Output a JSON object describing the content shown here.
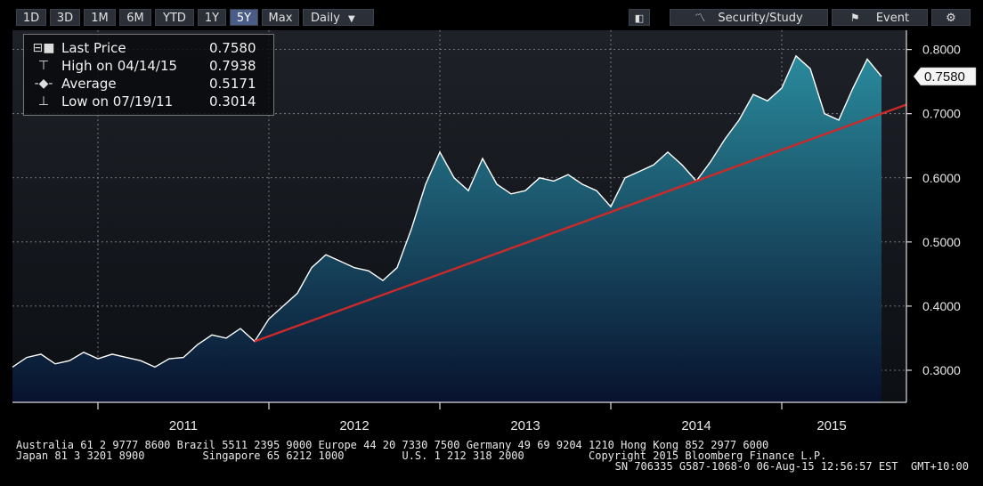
{
  "toolbar": {
    "buttons": [
      {
        "label": "1D",
        "active": false
      },
      {
        "label": "3D",
        "active": false
      },
      {
        "label": "1M",
        "active": false
      },
      {
        "label": "6M",
        "active": false
      },
      {
        "label": "YTD",
        "active": false
      },
      {
        "label": "1Y",
        "active": false
      },
      {
        "label": "5Y",
        "active": true
      },
      {
        "label": "Max",
        "active": false
      }
    ],
    "period": "Daily",
    "security_study": "Security/Study",
    "event": "Event"
  },
  "legend": {
    "last_price": {
      "label": "Last Price",
      "value": "0.7580"
    },
    "high": {
      "label": "High on 04/14/15",
      "value": "0.7938"
    },
    "average": {
      "label": "Average",
      "value": "0.5171"
    },
    "low": {
      "label": "Low on 07/19/11",
      "value": "0.3014"
    }
  },
  "chart_data": {
    "type": "area",
    "x_range": [
      "2010-07",
      "2015-08"
    ],
    "ylim": [
      0.25,
      0.83
    ],
    "y_ticks": [
      "0.3000",
      "0.4000",
      "0.5000",
      "0.6000",
      "0.7000",
      "0.8000"
    ],
    "x_ticks": [
      "2011",
      "2012",
      "2013",
      "2014",
      "2015"
    ],
    "last_price_label": "0.7580",
    "grid": true,
    "series": [
      {
        "x": [
          "2010-07",
          "2010-08",
          "2010-09",
          "2010-10",
          "2010-11",
          "2010-12",
          "2011-01",
          "2011-02",
          "2011-03",
          "2011-04",
          "2011-05",
          "2011-06",
          "2011-07",
          "2011-08",
          "2011-09",
          "2011-10",
          "2011-11",
          "2011-12",
          "2012-01",
          "2012-02",
          "2012-03",
          "2012-04",
          "2012-05",
          "2012-06",
          "2012-07",
          "2012-08",
          "2012-09",
          "2012-10",
          "2012-11",
          "2012-12",
          "2013-01",
          "2013-02",
          "2013-03",
          "2013-04",
          "2013-05",
          "2013-06",
          "2013-07",
          "2013-08",
          "2013-09",
          "2013-10",
          "2013-11",
          "2013-12",
          "2014-01",
          "2014-02",
          "2014-03",
          "2014-04",
          "2014-05",
          "2014-06",
          "2014-07",
          "2014-08",
          "2014-09",
          "2014-10",
          "2014-11",
          "2014-12",
          "2015-01",
          "2015-02",
          "2015-03",
          "2015-04",
          "2015-05",
          "2015-06",
          "2015-07",
          "2015-08"
        ],
        "values": [
          0.305,
          0.32,
          0.325,
          0.31,
          0.315,
          0.328,
          0.318,
          0.325,
          0.32,
          0.315,
          0.305,
          0.318,
          0.32,
          0.34,
          0.355,
          0.35,
          0.365,
          0.345,
          0.38,
          0.4,
          0.42,
          0.46,
          0.48,
          0.47,
          0.46,
          0.455,
          0.44,
          0.46,
          0.52,
          0.59,
          0.64,
          0.6,
          0.58,
          0.63,
          0.59,
          0.575,
          0.58,
          0.6,
          0.595,
          0.605,
          0.59,
          0.58,
          0.555,
          0.6,
          0.61,
          0.62,
          0.64,
          0.62,
          0.595,
          0.625,
          0.66,
          0.69,
          0.73,
          0.72,
          0.74,
          0.79,
          0.77,
          0.7,
          0.69,
          0.74,
          0.785,
          0.758
        ]
      },
      {
        "x": [
          "2011-12",
          "2015-08"
        ],
        "values": [
          0.345,
          0.7
        ]
      }
    ]
  },
  "footer": {
    "line1": "Australia 61 2 9777 8600 Brazil 5511 2395 9000 Europe 44 20 7330 7500 Germany 49 69 9204 1210 Hong Kong 852 2977 6000",
    "line2": "Japan 81 3 3201 8900         Singapore 65 6212 1000         U.S. 1 212 318 2000          Copyright 2015 Bloomberg Finance L.P.",
    "line3": "SN 706335 G587-1068-0 06-Aug-15 12:56:57 EST  GMT+10:00"
  },
  "colors": {
    "area_top": "#2a8a9c",
    "area_bottom": "#08122e",
    "price_line": "#ffffff",
    "trend_line": "#cc2a2a",
    "axis": "#dddddd"
  }
}
